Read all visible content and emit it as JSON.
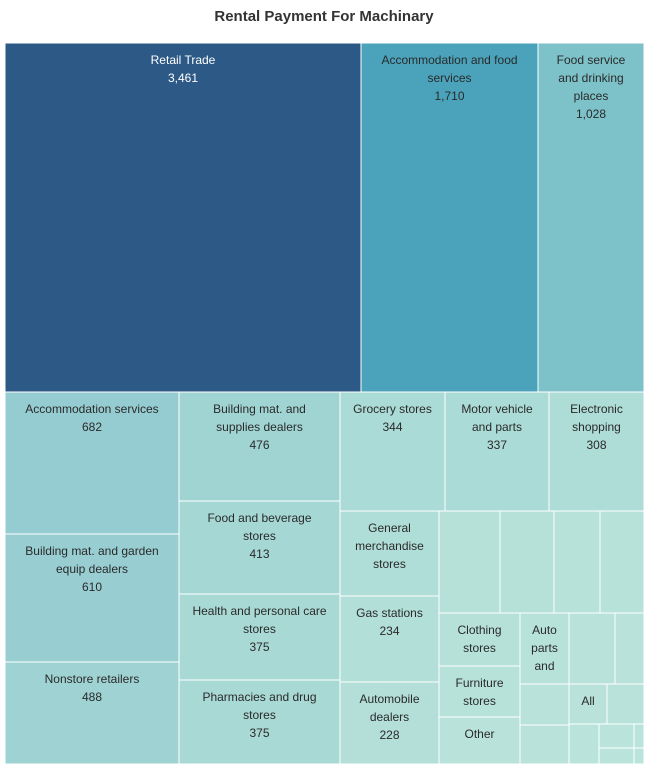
{
  "chart_data": {
    "type": "treemap",
    "title": "Rental Payment For Machinary",
    "color_scale": [
      "#b9e3d9",
      "#2d5986"
    ],
    "cells": [
      {
        "label": "Retail Trade",
        "value": 3461,
        "value_text": "3,461",
        "color": "#2d5986"
      },
      {
        "label": "Accommodation and food services",
        "value": 1710,
        "value_text": "1,710",
        "color": "#4aa3bb"
      },
      {
        "label": "Food service and drinking places",
        "value": 1028,
        "value_text": "1,028",
        "color": "#7dc1c9"
      },
      {
        "label": "Accommodation services",
        "value": 682,
        "value_text": "682",
        "color": "#95ccd1"
      },
      {
        "label": "Building mat. and garden equip dealers",
        "value": 610,
        "value_text": "610",
        "color": "#98ced2"
      },
      {
        "label": "Nonstore retailers",
        "value": 488,
        "value_text": "488",
        "color": "#9fd3d3"
      },
      {
        "label": "Building mat. and supplies dealers",
        "value": 476,
        "value_text": "476",
        "color": "#a0d4d3"
      },
      {
        "label": "Food and beverage stores",
        "value": 413,
        "value_text": "413",
        "color": "#a5d7d4"
      },
      {
        "label": "Health and personal care stores",
        "value": 375,
        "value_text": "375",
        "color": "#a8d9d5"
      },
      {
        "label": "Pharmacies and drug stores",
        "value": 375,
        "value_text": "375",
        "color": "#a8d9d5"
      },
      {
        "label": "Grocery stores",
        "value": 344,
        "value_text": "344",
        "color": "#abdbd6"
      },
      {
        "label": "Motor vehicle and parts",
        "value": 337,
        "value_text": "337",
        "color": "#abdbd6"
      },
      {
        "label": "Electronic shopping",
        "value": 308,
        "value_text": "308",
        "color": "#aedcd7"
      },
      {
        "label": "General merchandise stores",
        "value": null,
        "value_text": "",
        "color": "#afddd7"
      },
      {
        "label": "Gas stations",
        "value": 234,
        "value_text": "234",
        "color": "#b2dfd8"
      },
      {
        "label": "Automobile dealers",
        "value": 228,
        "value_text": "228",
        "color": "#b3dfd8"
      },
      {
        "label": "Clothing stores",
        "value": null,
        "value_text": "",
        "color": "#b6e1d9"
      },
      {
        "label": "Auto parts and",
        "value": null,
        "value_text": "",
        "color": "#b7e2d9"
      },
      {
        "label": "Furniture stores",
        "value": null,
        "value_text": "",
        "color": "#b7e2d9"
      },
      {
        "label": "All",
        "value": null,
        "value_text": "",
        "color": "#b9e3da"
      },
      {
        "label": "Other",
        "value": null,
        "value_text": "",
        "color": "#b9e3da"
      },
      {
        "label": "",
        "value": null,
        "value_text": "",
        "color": "#b6e1d9"
      },
      {
        "label": "",
        "value": null,
        "value_text": "",
        "color": "#b6e1d9"
      },
      {
        "label": "",
        "value": null,
        "value_text": "",
        "color": "#b7e2d9"
      },
      {
        "label": "",
        "value": null,
        "value_text": "",
        "color": "#b7e2d9"
      },
      {
        "label": "",
        "value": null,
        "value_text": "",
        "color": "#b8e2da"
      },
      {
        "label": "",
        "value": null,
        "value_text": "",
        "color": "#b8e2da"
      },
      {
        "label": "",
        "value": null,
        "value_text": "",
        "color": "#b9e3da"
      },
      {
        "label": "",
        "value": null,
        "value_text": "",
        "color": "#b9e3da"
      },
      {
        "label": "",
        "value": null,
        "value_text": "",
        "color": "#b9e3da"
      },
      {
        "label": "",
        "value": null,
        "value_text": "",
        "color": "#bae4db"
      },
      {
        "label": "",
        "value": null,
        "value_text": "",
        "color": "#bae4db"
      },
      {
        "label": "",
        "value": null,
        "value_text": "",
        "color": "#bae4db"
      },
      {
        "label": "",
        "value": null,
        "value_text": "",
        "color": "#bae4db"
      },
      {
        "label": "",
        "value": null,
        "value_text": "",
        "color": "#bae4db"
      }
    ]
  }
}
